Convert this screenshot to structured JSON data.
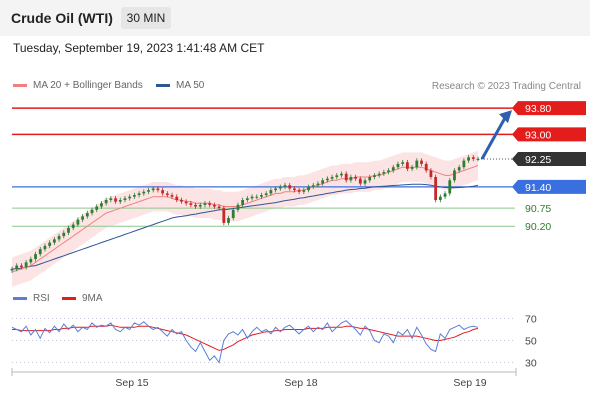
{
  "header": {
    "title": "Crude Oil (WTI)",
    "timeframe": "30 MIN",
    "timestamp": "Tuesday, September 19, 2023 1:41:48 AM CET"
  },
  "legend_main": [
    {
      "label": "MA 20 + Bollinger Bands",
      "color": "#f08080"
    },
    {
      "label": "MA 50",
      "color": "#2f5597"
    }
  ],
  "legend_rsi": [
    {
      "label": "RSI",
      "color": "#5b7fd6"
    },
    {
      "label": "9MA",
      "color": "#e31c1c"
    }
  ],
  "credit": "Research © 2023 Trading Central",
  "colors": {
    "up": "#2e7d32",
    "down": "#c62828",
    "resistance": "#e31c1c",
    "pivot": "#3a6fe0",
    "support": "#8cc88c",
    "last": "#333333",
    "arrow": "#2d5fb0"
  },
  "chart_data": [
    {
      "type": "candlestick",
      "title": "Crude Oil (WTI)",
      "timeframe": "30 MIN",
      "x_ticks": [
        "Sep 15",
        "Sep 18",
        "Sep 19"
      ],
      "ylim": [
        88.5,
        94.2
      ],
      "last_price": 92.25,
      "levels": [
        {
          "value": 93.8,
          "label": "93.80",
          "kind": "resistance"
        },
        {
          "value": 93.0,
          "label": "93.00",
          "kind": "resistance"
        },
        {
          "value": 92.25,
          "label": "92.25",
          "kind": "last"
        },
        {
          "value": 91.4,
          "label": "91.40",
          "kind": "pivot"
        },
        {
          "value": 90.75,
          "label": "90.75",
          "kind": "support"
        },
        {
          "value": 90.2,
          "label": "90.20",
          "kind": "support"
        }
      ],
      "forecast_arrow": {
        "from": 92.25,
        "to": 93.8
      },
      "close_series": [
        88.9,
        89.0,
        88.95,
        89.1,
        89.2,
        89.35,
        89.5,
        89.6,
        89.7,
        89.8,
        89.9,
        90.0,
        90.15,
        90.25,
        90.4,
        90.5,
        90.6,
        90.7,
        90.8,
        90.9,
        91.0,
        91.05,
        90.95,
        91.0,
        91.05,
        91.1,
        91.15,
        91.2,
        91.25,
        91.3,
        91.35,
        91.3,
        91.2,
        91.15,
        91.1,
        91.0,
        90.95,
        90.9,
        90.85,
        90.8,
        90.85,
        90.9,
        90.85,
        90.8,
        90.75,
        90.3,
        90.45,
        90.7,
        90.85,
        91.0,
        91.05,
        91.1,
        91.1,
        91.15,
        91.2,
        91.3,
        91.35,
        91.4,
        91.45,
        91.35,
        91.3,
        91.25,
        91.3,
        91.4,
        91.45,
        91.5,
        91.6,
        91.65,
        91.7,
        91.75,
        91.8,
        91.6,
        91.7,
        91.65,
        91.5,
        91.6,
        91.7,
        91.75,
        91.8,
        91.85,
        91.9,
        92.0,
        92.1,
        92.15,
        91.95,
        92.0,
        92.2,
        92.1,
        91.9,
        91.7,
        91.0,
        91.1,
        91.2,
        91.6,
        91.9,
        92.0,
        92.2,
        92.3,
        92.25,
        92.25
      ],
      "ma20_series": [
        88.8,
        88.85,
        88.9,
        88.95,
        89.0,
        89.1,
        89.2,
        89.3,
        89.4,
        89.5,
        89.6,
        89.7,
        89.8,
        89.9,
        90.0,
        90.1,
        90.2,
        90.3,
        90.4,
        90.5,
        90.6,
        90.65,
        90.7,
        90.75,
        90.8,
        90.85,
        90.9,
        90.95,
        91.0,
        91.05,
        91.1,
        91.1,
        91.1,
        91.1,
        91.05,
        91.0,
        91.0,
        90.95,
        90.95,
        90.9,
        90.9,
        90.9,
        90.9,
        90.85,
        90.85,
        90.8,
        90.8,
        90.8,
        90.8,
        90.85,
        90.9,
        90.95,
        91.0,
        91.05,
        91.1,
        91.15,
        91.2,
        91.2,
        91.25,
        91.25,
        91.25,
        91.3,
        91.3,
        91.35,
        91.4,
        91.45,
        91.5,
        91.55,
        91.6,
        91.6,
        91.65,
        91.65,
        91.65,
        91.7,
        91.7,
        91.7,
        91.7,
        91.75,
        91.75,
        91.8,
        91.85,
        91.9,
        91.95,
        92.0,
        92.0,
        92.0,
        92.0,
        92.0,
        91.95,
        91.9,
        91.85,
        91.8,
        91.75,
        91.75,
        91.8,
        91.85,
        91.9,
        91.95,
        92.0,
        92.05
      ],
      "ma50_series": [
        88.9,
        88.9,
        88.92,
        88.95,
        88.98,
        89.0,
        89.05,
        89.1,
        89.15,
        89.2,
        89.25,
        89.3,
        89.35,
        89.4,
        89.45,
        89.5,
        89.55,
        89.6,
        89.65,
        89.7,
        89.75,
        89.8,
        89.85,
        89.9,
        89.95,
        90.0,
        90.05,
        90.1,
        90.15,
        90.2,
        90.25,
        90.3,
        90.35,
        90.4,
        90.45,
        90.48,
        90.5,
        90.52,
        90.55,
        90.57,
        90.6,
        90.62,
        90.65,
        90.67,
        90.7,
        90.7,
        90.72,
        90.74,
        90.76,
        90.78,
        90.8,
        90.82,
        90.84,
        90.86,
        90.88,
        90.9,
        90.92,
        90.95,
        90.98,
        91.0,
        91.02,
        91.05,
        91.07,
        91.1,
        91.12,
        91.15,
        91.17,
        91.2,
        91.22,
        91.25,
        91.27,
        91.3,
        91.32,
        91.33,
        91.35,
        91.36,
        91.38,
        91.4,
        91.41,
        91.42,
        91.43,
        91.44,
        91.45,
        91.46,
        91.47,
        91.48,
        91.48,
        91.48,
        91.47,
        91.45,
        91.42,
        91.4,
        91.38,
        91.37,
        91.37,
        91.38,
        91.39,
        91.4,
        91.42,
        91.45
      ]
    },
    {
      "type": "line",
      "title": "",
      "levels": [
        70,
        50,
        30
      ],
      "ylim": [
        25,
        75
      ],
      "series": [
        {
          "name": "RSI",
          "values": [
            62,
            60,
            58,
            63,
            55,
            60,
            52,
            61,
            57,
            63,
            58,
            65,
            60,
            64,
            58,
            62,
            60,
            66,
            62,
            64,
            63,
            66,
            60,
            58,
            62,
            60,
            66,
            64,
            67,
            63,
            60,
            62,
            58,
            54,
            60,
            56,
            58,
            50,
            44,
            40,
            48,
            40,
            32,
            36,
            30,
            50,
            56,
            58,
            55,
            60,
            52,
            58,
            62,
            58,
            60,
            56,
            62,
            58,
            62,
            64,
            60,
            56,
            60,
            63,
            58,
            62,
            60,
            66,
            58,
            62,
            66,
            68,
            64,
            60,
            55,
            63,
            59,
            50,
            48,
            56,
            54,
            48,
            58,
            55,
            60,
            52,
            62,
            55,
            47,
            42,
            40,
            56,
            52,
            60,
            62,
            64,
            60,
            62,
            63,
            62
          ]
        },
        {
          "name": "9MA",
          "values": [
            60,
            60,
            59,
            59,
            59,
            59,
            59,
            59,
            59,
            60,
            60,
            61,
            61,
            62,
            62,
            62,
            62,
            63,
            63,
            63,
            63,
            64,
            63,
            62,
            62,
            62,
            62,
            63,
            63,
            63,
            62,
            61,
            60,
            59,
            58,
            57,
            56,
            55,
            53,
            51,
            49,
            47,
            45,
            43,
            41,
            42,
            44,
            46,
            49,
            51,
            53,
            55,
            56,
            57,
            58,
            58,
            59,
            59,
            60,
            60,
            60,
            60,
            60,
            61,
            61,
            61,
            61,
            62,
            62,
            62,
            62,
            63,
            63,
            62,
            61,
            61,
            60,
            59,
            58,
            57,
            56,
            55,
            54,
            54,
            54,
            54,
            54,
            53,
            52,
            51,
            50,
            50,
            51,
            52,
            53,
            55,
            57,
            58,
            60,
            61
          ]
        }
      ]
    }
  ]
}
